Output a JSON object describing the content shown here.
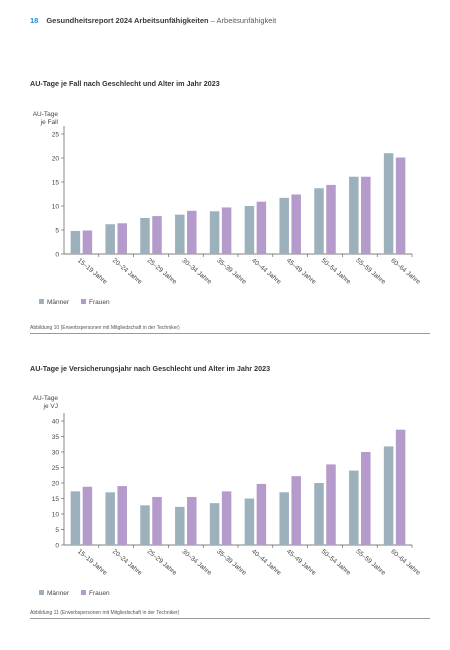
{
  "header": {
    "page_number": "18",
    "title": "Gesundheitsreport 2024 Arbeitsunfähigkeiten",
    "subtitle": "– Arbeitsunfähigkeit"
  },
  "colors": {
    "maenner": "#9db1bd",
    "frauen": "#b59bcc",
    "axis": "#444444",
    "accent": "#1a8fd6"
  },
  "chart_data": [
    {
      "type": "bar",
      "title": "AU-Tage je Fall nach Geschlecht und Alter im Jahr 2023",
      "ylabel_line1": "AU-Tage",
      "ylabel_line2": "je Fall",
      "ylim": [
        0,
        25
      ],
      "yticks": [
        0,
        5,
        10,
        15,
        20,
        25
      ],
      "categories": [
        "15–19 Jahre",
        "20–24 Jahre",
        "25–29 Jahre",
        "30–34 Jahre",
        "35–39 Jahre",
        "40–44 Jahre",
        "45–49 Jahre",
        "50–54 Jahre",
        "55–59 Jahre",
        "60–64 Jahre"
      ],
      "series": [
        {
          "name": "Männer",
          "values": [
            4.8,
            6.2,
            7.5,
            8.2,
            8.9,
            10.0,
            11.7,
            13.7,
            16.1,
            21.0
          ]
        },
        {
          "name": "Frauen",
          "values": [
            4.9,
            6.4,
            7.9,
            9.0,
            9.7,
            10.9,
            12.4,
            14.4,
            16.1,
            20.1
          ]
        }
      ],
      "grid": false,
      "legend": "bottom-left",
      "caption": "Abbildung 10 (Erwerbspersonen mit Mitgliedschaft in der Techniker)"
    },
    {
      "type": "bar",
      "title": "AU-Tage je Versicherungsjahr nach Geschlecht und Alter im Jahr 2023",
      "ylabel_line1": "AU-Tage",
      "ylabel_line2": "je VJ",
      "ylim": [
        0,
        40
      ],
      "yticks": [
        0,
        5,
        10,
        15,
        20,
        25,
        30,
        35,
        40
      ],
      "categories": [
        "15–19 Jahre",
        "20–24 Jahre",
        "25–29 Jahre",
        "30–34 Jahre",
        "35–39 Jahre",
        "40–44 Jahre",
        "45–49 Jahre",
        "50–54 Jahre",
        "55–59 Jahre",
        "60–64 Jahre"
      ],
      "series": [
        {
          "name": "Männer",
          "values": [
            17.3,
            17.0,
            12.8,
            12.3,
            13.5,
            15.0,
            17.0,
            20.0,
            24.0,
            31.8
          ]
        },
        {
          "name": "Frauen",
          "values": [
            18.8,
            19.0,
            15.5,
            15.5,
            17.3,
            19.7,
            22.2,
            26.0,
            30.0,
            37.2
          ]
        }
      ],
      "grid": false,
      "legend": "bottom-left",
      "caption": "Abbildung 11 (Erwerbspersonen mit Mitgliedschaft in der Techniker)"
    }
  ]
}
